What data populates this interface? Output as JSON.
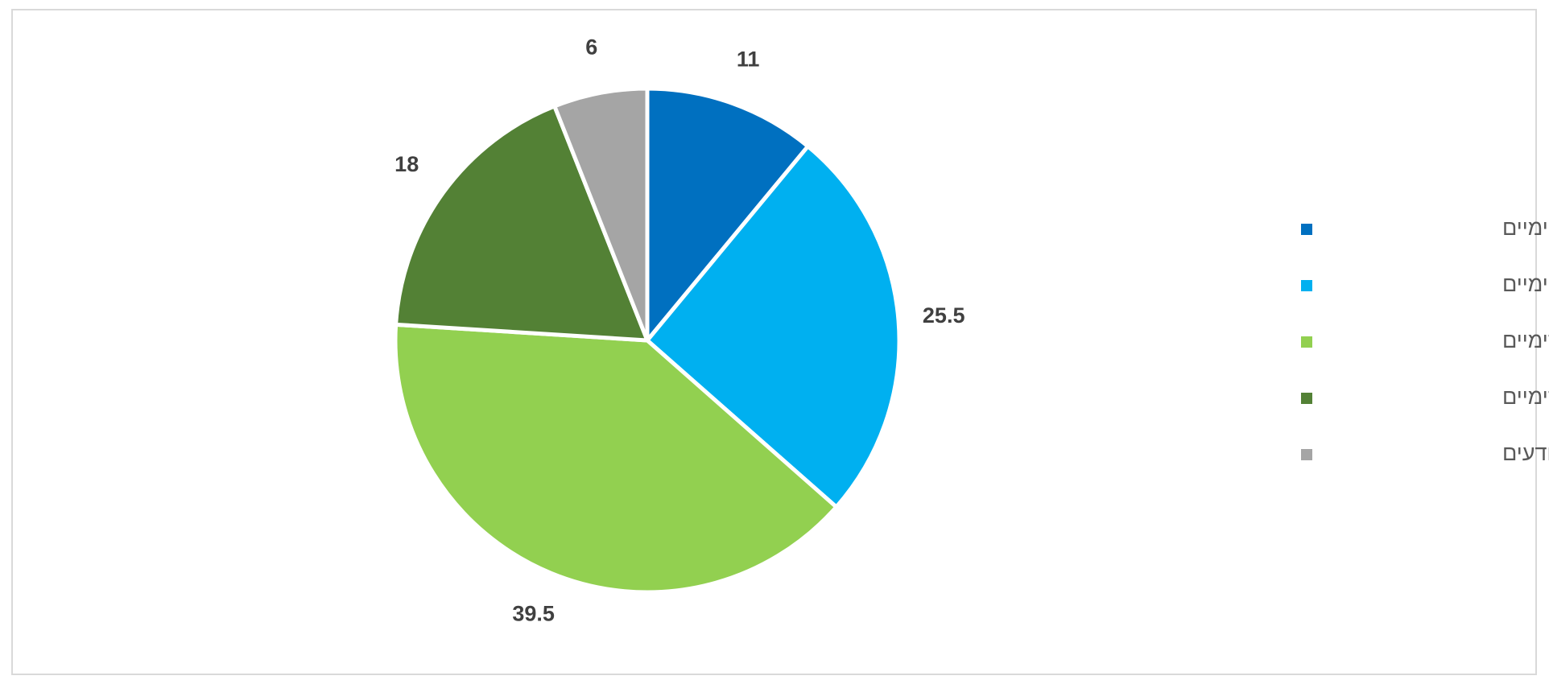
{
  "chart_data": {
    "type": "pie",
    "categories": [
      "מאוד אופטימיים",
      "די אופטימיים",
      "די פסימיים",
      "מאוד פסימיים",
      "לא יודעים"
    ],
    "values": [
      11,
      25.5,
      39.5,
      18,
      6
    ],
    "colors": [
      "#0070c0",
      "#00b0f0",
      "#92d050",
      "#538135",
      "#a5a5a5"
    ],
    "legend": "right"
  }
}
